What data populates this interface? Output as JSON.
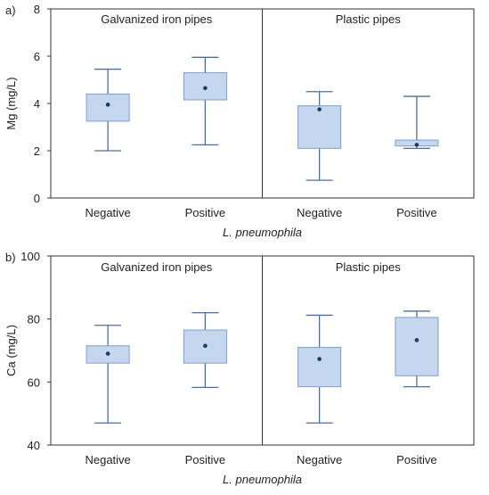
{
  "chart_data": [
    {
      "type": "box",
      "panel_label": "a)",
      "ylabel": "Mg (mg/L)",
      "xlabel": "L. pneumophila",
      "ylim": [
        0,
        8
      ],
      "yticks": [
        0,
        2,
        4,
        6,
        8
      ],
      "groups": [
        {
          "title": "Galvanized iron pipes",
          "categories": [
            "Negative",
            "Positive"
          ],
          "boxes": [
            {
              "whisker_low": 2.0,
              "q1": 3.25,
              "q3": 4.4,
              "whisker_high": 5.45,
              "mean": 3.95
            },
            {
              "whisker_low": 2.25,
              "q1": 4.15,
              "q3": 5.3,
              "whisker_high": 5.95,
              "mean": 4.65
            }
          ]
        },
        {
          "title": "Plastic pipes",
          "categories": [
            "Negative",
            "Positive"
          ],
          "boxes": [
            {
              "whisker_low": 0.75,
              "q1": 2.1,
              "q3": 3.9,
              "whisker_high": 4.5,
              "mean": 3.75
            },
            {
              "whisker_low": 2.1,
              "q1": 2.2,
              "q3": 2.45,
              "whisker_high": 4.3,
              "mean": 2.25
            }
          ]
        }
      ]
    },
    {
      "type": "box",
      "panel_label": "b)",
      "ylabel": "Ca (mg/L)",
      "xlabel": "L. pneumophila",
      "ylim": [
        40,
        100
      ],
      "yticks": [
        40,
        60,
        80,
        100
      ],
      "groups": [
        {
          "title": "Galvanized iron pipes",
          "categories": [
            "Negative",
            "Positive"
          ],
          "boxes": [
            {
              "whisker_low": 47,
              "q1": 66,
              "q3": 71.5,
              "whisker_high": 78,
              "mean": 69
            },
            {
              "whisker_low": 58.3,
              "q1": 66,
              "q3": 76.5,
              "whisker_high": 82,
              "mean": 71.5
            }
          ]
        },
        {
          "title": "Plastic pipes",
          "categories": [
            "Negative",
            "Positive"
          ],
          "boxes": [
            {
              "whisker_low": 47,
              "q1": 58.5,
              "q3": 71,
              "whisker_high": 81.2,
              "mean": 67.3
            },
            {
              "whisker_low": 58.5,
              "q1": 62,
              "q3": 80.5,
              "whisker_high": 82.5,
              "mean": 73.3
            }
          ]
        }
      ]
    }
  ],
  "colors": {
    "box_fill": "#c5d7ef",
    "box_stroke": "#7f9fcc",
    "whisker": "#4e6f9e",
    "mean_dot": "#1f3864",
    "frame": "#333333",
    "text": "#222222"
  }
}
